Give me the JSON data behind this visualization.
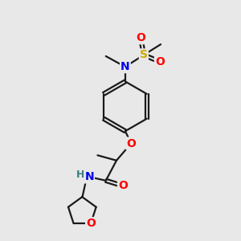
{
  "background_color": "#e8e8e8",
  "bond_color": "#1a1a1a",
  "atom_colors": {
    "N": "#0000ee",
    "O": "#ff0000",
    "S": "#ccaa00",
    "H": "#3a8080"
  },
  "figsize": [
    3.0,
    3.0
  ],
  "dpi": 100,
  "lw": 1.6,
  "fontsize": 9.5
}
